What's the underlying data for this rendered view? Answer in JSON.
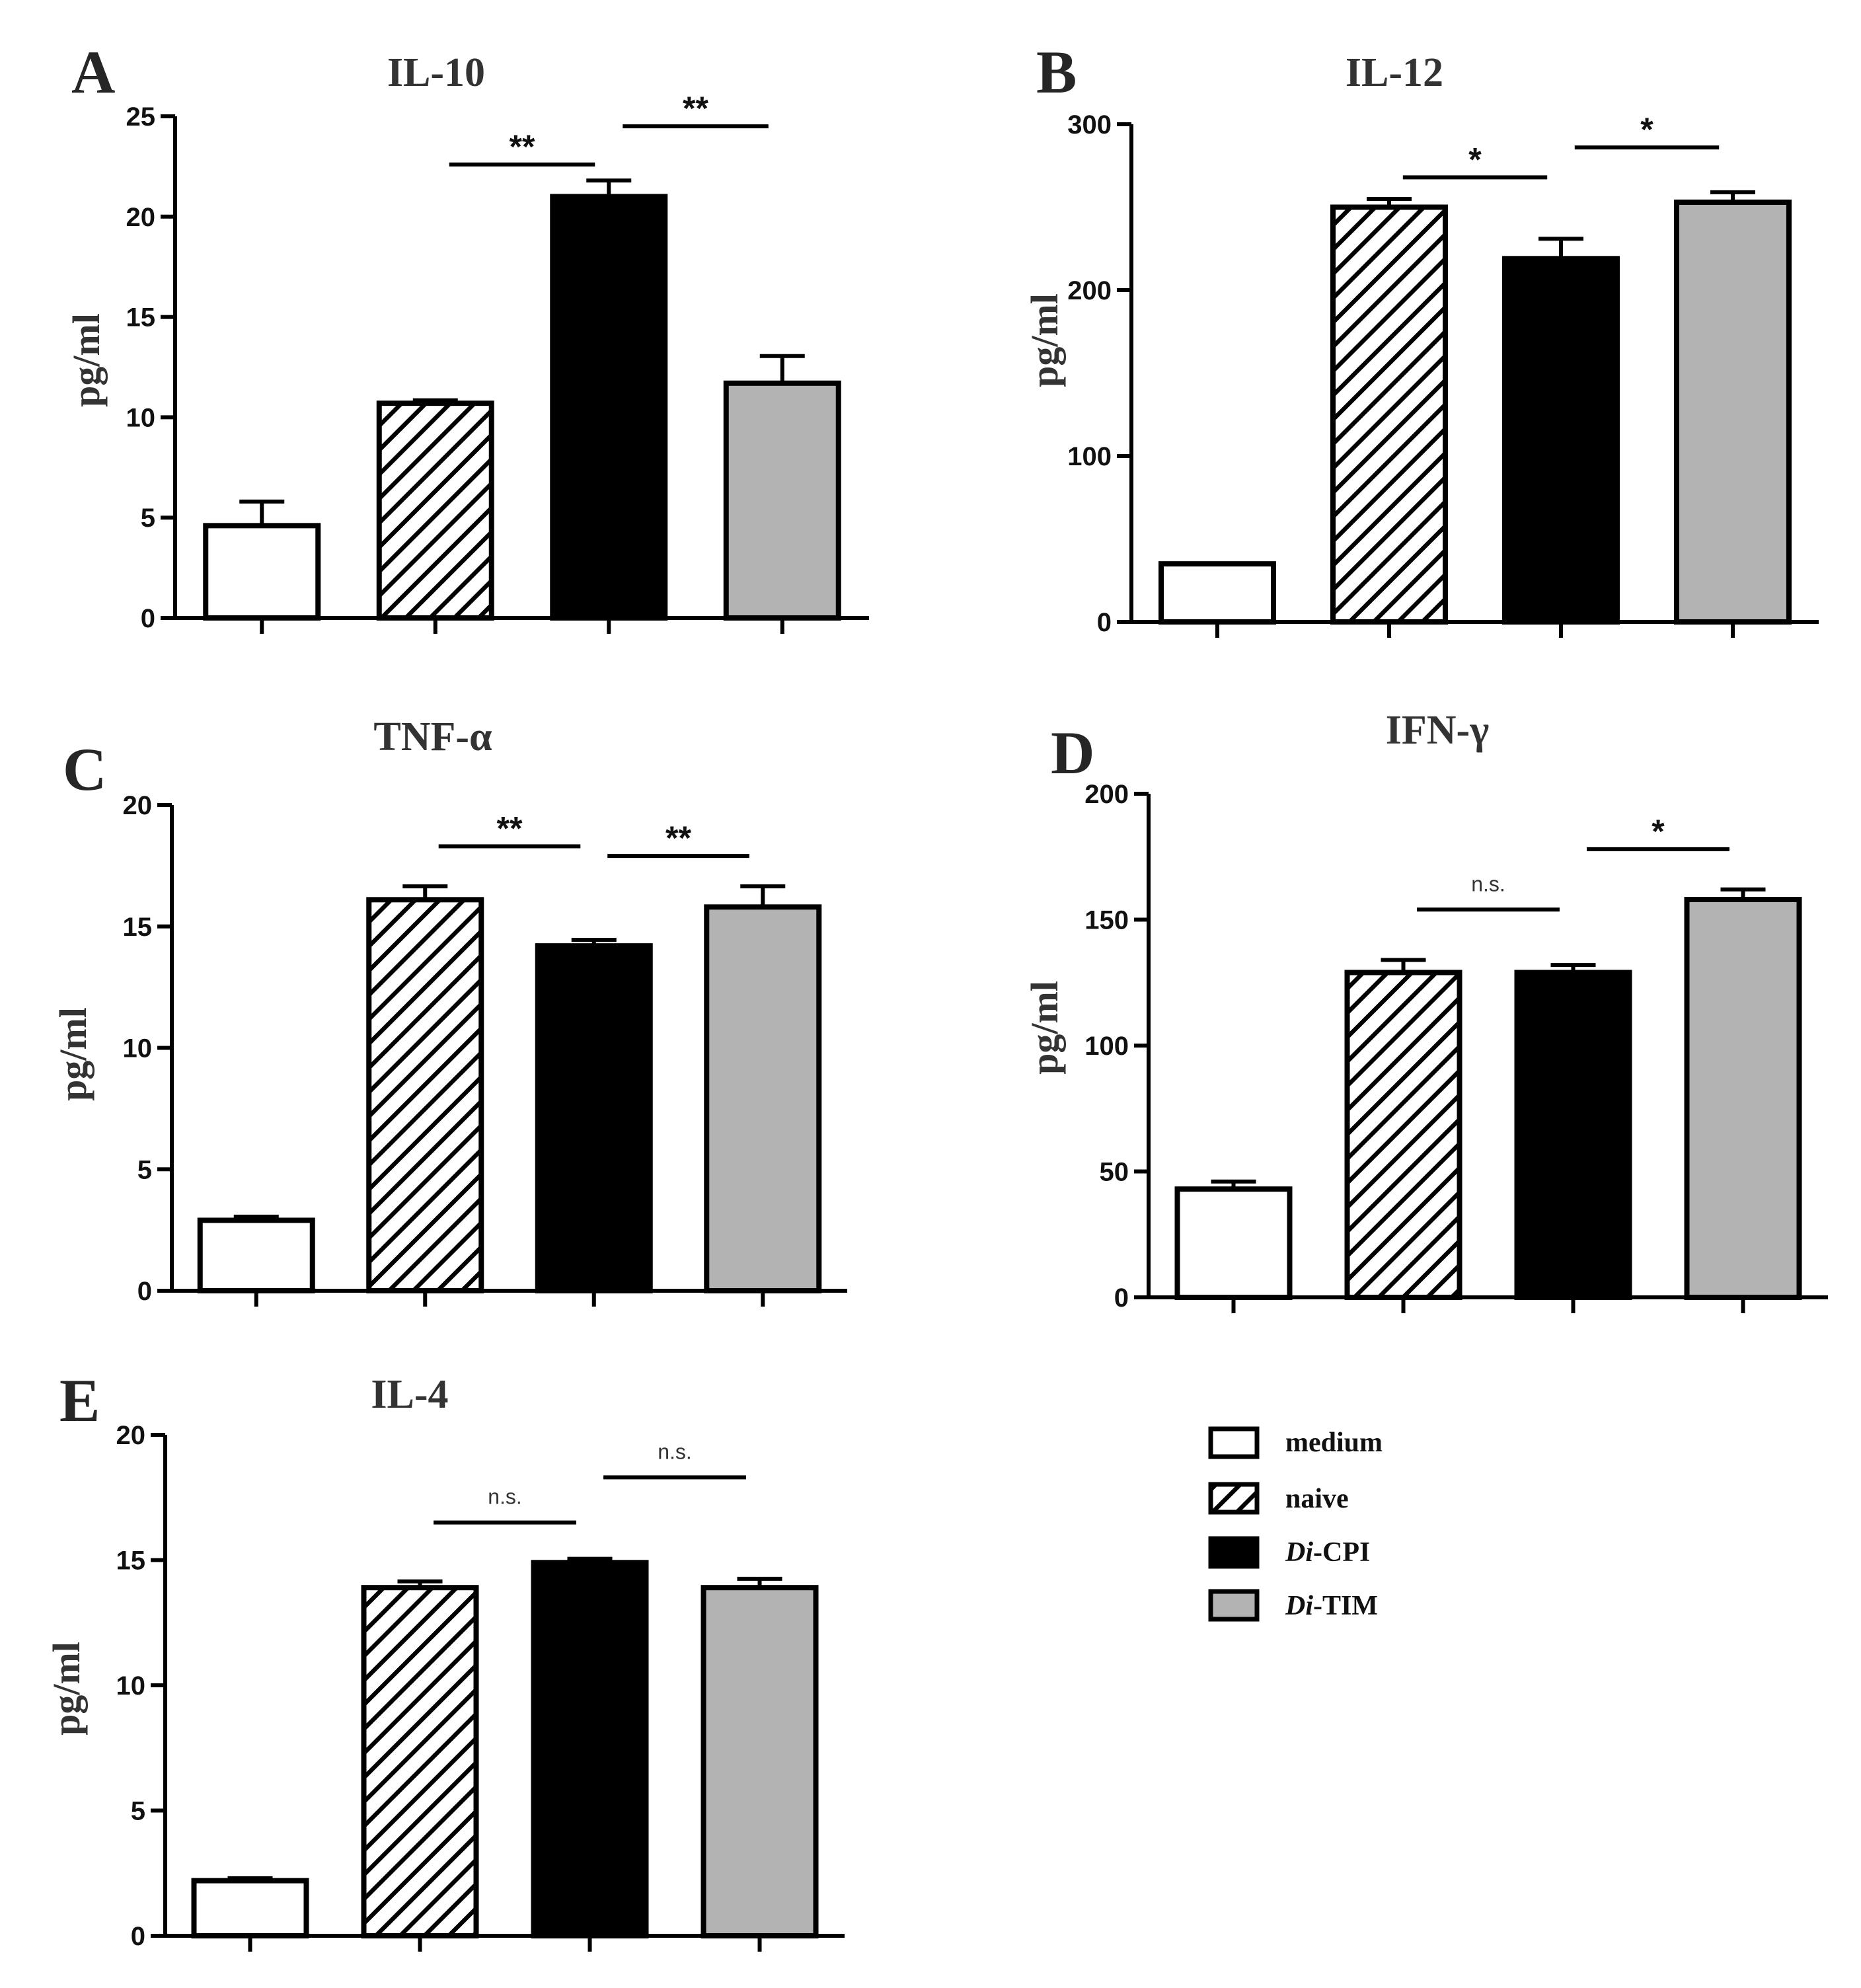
{
  "figure": {
    "groups": [
      "medium",
      "naive",
      "Di-CPI",
      "Di-TIM"
    ],
    "legend": [
      {
        "fill": "white",
        "label": "medium"
      },
      {
        "fill": "hatch",
        "label": "naive"
      },
      {
        "fill": "black",
        "prefix": "Di",
        "suffix": "-CPI"
      },
      {
        "fill": "gray",
        "prefix": "Di",
        "suffix": "-TIM"
      }
    ],
    "colors": {
      "black": "#000000",
      "gray": "#b3b3b3",
      "white": "#ffffff"
    }
  },
  "chart_data": [
    {
      "letter": "A",
      "title": "IL-10",
      "type": "bar",
      "ylabel": "pg/ml",
      "ylim": [
        0,
        25
      ],
      "yticks": [
        "0",
        "5",
        "10",
        "15",
        "20",
        "25"
      ],
      "categories": [
        "medium",
        "naive",
        "Di-CPI",
        "Di-TIM"
      ],
      "values": [
        4.6,
        10.7,
        21.0,
        11.7
      ],
      "errors": [
        1.2,
        0.15,
        0.8,
        1.35
      ],
      "significance": [
        {
          "from": 1,
          "to": 2,
          "label": "**",
          "y": 22.6
        },
        {
          "from": 2,
          "to": 3,
          "label": "**",
          "y": 24.5
        }
      ]
    },
    {
      "letter": "B",
      "title": "IL-12",
      "type": "bar",
      "ylabel": "pg/ml",
      "ylim": [
        0,
        300
      ],
      "yticks": [
        "0",
        "100",
        "200",
        "300"
      ],
      "categories": [
        "medium",
        "naive",
        "Di-CPI",
        "Di-TIM"
      ],
      "values": [
        35,
        250,
        219,
        253
      ],
      "errors": [
        0,
        5,
        12,
        6
      ],
      "significance": [
        {
          "from": 1,
          "to": 2,
          "label": "*",
          "y": 268
        },
        {
          "from": 2,
          "to": 3,
          "label": "*",
          "y": 286
        }
      ]
    },
    {
      "letter": "C",
      "title": "TNF-α",
      "type": "bar",
      "ylabel": "pg/ml",
      "ylim": [
        0,
        20
      ],
      "yticks": [
        "0",
        "5",
        "10",
        "15",
        "20"
      ],
      "categories": [
        "medium",
        "naive",
        "Di-CPI",
        "Di-TIM"
      ],
      "values": [
        2.9,
        16.1,
        14.2,
        15.8
      ],
      "errors": [
        0.15,
        0.55,
        0.25,
        0.85
      ],
      "significance": [
        {
          "from": 1,
          "to": 2,
          "label": "**",
          "y": 18.3
        },
        {
          "from": 2,
          "to": 3,
          "label": "**",
          "y": 17.9
        }
      ]
    },
    {
      "letter": "D",
      "title": "IFN-γ",
      "type": "bar",
      "ylabel": "pg/ml",
      "ylim": [
        0,
        200
      ],
      "yticks": [
        "0",
        "50",
        "100",
        "150",
        "200"
      ],
      "categories": [
        "medium",
        "naive",
        "Di-CPI",
        "Di-TIM"
      ],
      "values": [
        43,
        129,
        129,
        158
      ],
      "errors": [
        3,
        5,
        3,
        4
      ],
      "significance": [
        {
          "from": 1,
          "to": 2,
          "label": "n.s.",
          "y": 154
        },
        {
          "from": 2,
          "to": 3,
          "label": "*",
          "y": 178
        }
      ]
    },
    {
      "letter": "E",
      "title": "IL-4",
      "type": "bar",
      "ylabel": "pg/ml",
      "ylim": [
        0,
        20
      ],
      "yticks": [
        "0",
        "5",
        "10",
        "15",
        "20"
      ],
      "categories": [
        "medium",
        "naive",
        "Di-CPI",
        "Di-TIM"
      ],
      "values": [
        2.2,
        13.9,
        14.9,
        13.9
      ],
      "errors": [
        0.1,
        0.25,
        0.15,
        0.35
      ],
      "significance": [
        {
          "from": 1,
          "to": 2,
          "label": "n.s.",
          "y": 16.5
        },
        {
          "from": 2,
          "to": 3,
          "label": "n.s.",
          "y": 18.3
        }
      ]
    }
  ]
}
